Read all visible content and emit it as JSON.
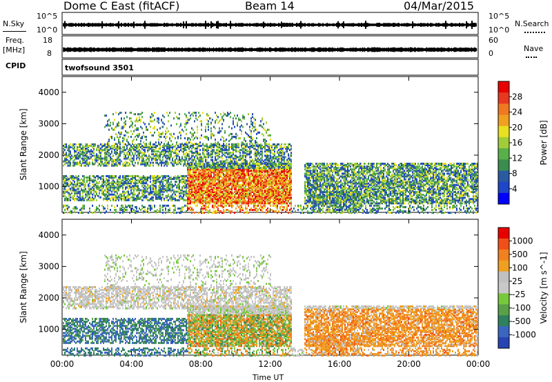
{
  "header": {
    "station": "Dome C East (fitACF)",
    "beam": "Beam 14",
    "date": "04/Mar/2015"
  },
  "status_panel": {
    "nsky_label": "N.Sky",
    "nsearch_label": "N.Search",
    "noise_ticks_left": [
      "10^5",
      "10^0"
    ],
    "noise_ticks_right": [
      "10^5",
      "10^0"
    ],
    "freq_label_1": "Freq.",
    "freq_label_2": "[MHz]",
    "freq_ticks": [
      "18",
      "8"
    ],
    "nave_label": "Nave",
    "nave_ticks": [
      "60",
      "0"
    ],
    "cpid_label": "CPID",
    "cpid_value": "twofsound 3501"
  },
  "chart_data": [
    {
      "type": "heatmap",
      "name": "power",
      "ylabel": "Slant Range [km]",
      "yticks": [
        "4000",
        "3000",
        "2000",
        "1000"
      ],
      "ylim": [
        180,
        4500
      ],
      "xlabel": "Time UT",
      "xticks": [
        "00:00",
        "04:00",
        "08:00",
        "12:00",
        "16:00",
        "20:00",
        "00:00"
      ],
      "colorbar": {
        "label": "Power [dB]",
        "ticks": [
          "28",
          "24",
          "20",
          "16",
          "12",
          "8",
          "4"
        ],
        "colors": [
          "#0000ff",
          "#1e46c8",
          "#2a5aa0",
          "#3c8c50",
          "#58b048",
          "#a0cc3a",
          "#e8e020",
          "#f0a020",
          "#f07820",
          "#e83820",
          "#e80000"
        ],
        "range": [
          0,
          32
        ]
      }
    },
    {
      "type": "heatmap",
      "name": "velocity",
      "ylabel": "Slant Range [km]",
      "yticks": [
        "4000",
        "3000",
        "2000",
        "1000"
      ],
      "ylim": [
        180,
        4500
      ],
      "xlabel": "Time UT",
      "xticks": [
        "00:00",
        "04:00",
        "08:00",
        "12:00",
        "16:00",
        "20:00",
        "00:00"
      ],
      "colorbar": {
        "label": "Velocity [m s^-1]",
        "ticks": [
          "1000",
          "500",
          "100",
          "25",
          "-25",
          "-100",
          "-500",
          "-1000"
        ],
        "colors": [
          "#2844b4",
          "#3a66c0",
          "#2e8060",
          "#5aa048",
          "#78c83c",
          "#c8c8c8",
          "#c0c0c0",
          "#f0a020",
          "#f08020",
          "#f05018",
          "#e80000"
        ],
        "range": [
          -1200,
          1200
        ]
      }
    }
  ],
  "x_axis_title": "Time UT"
}
